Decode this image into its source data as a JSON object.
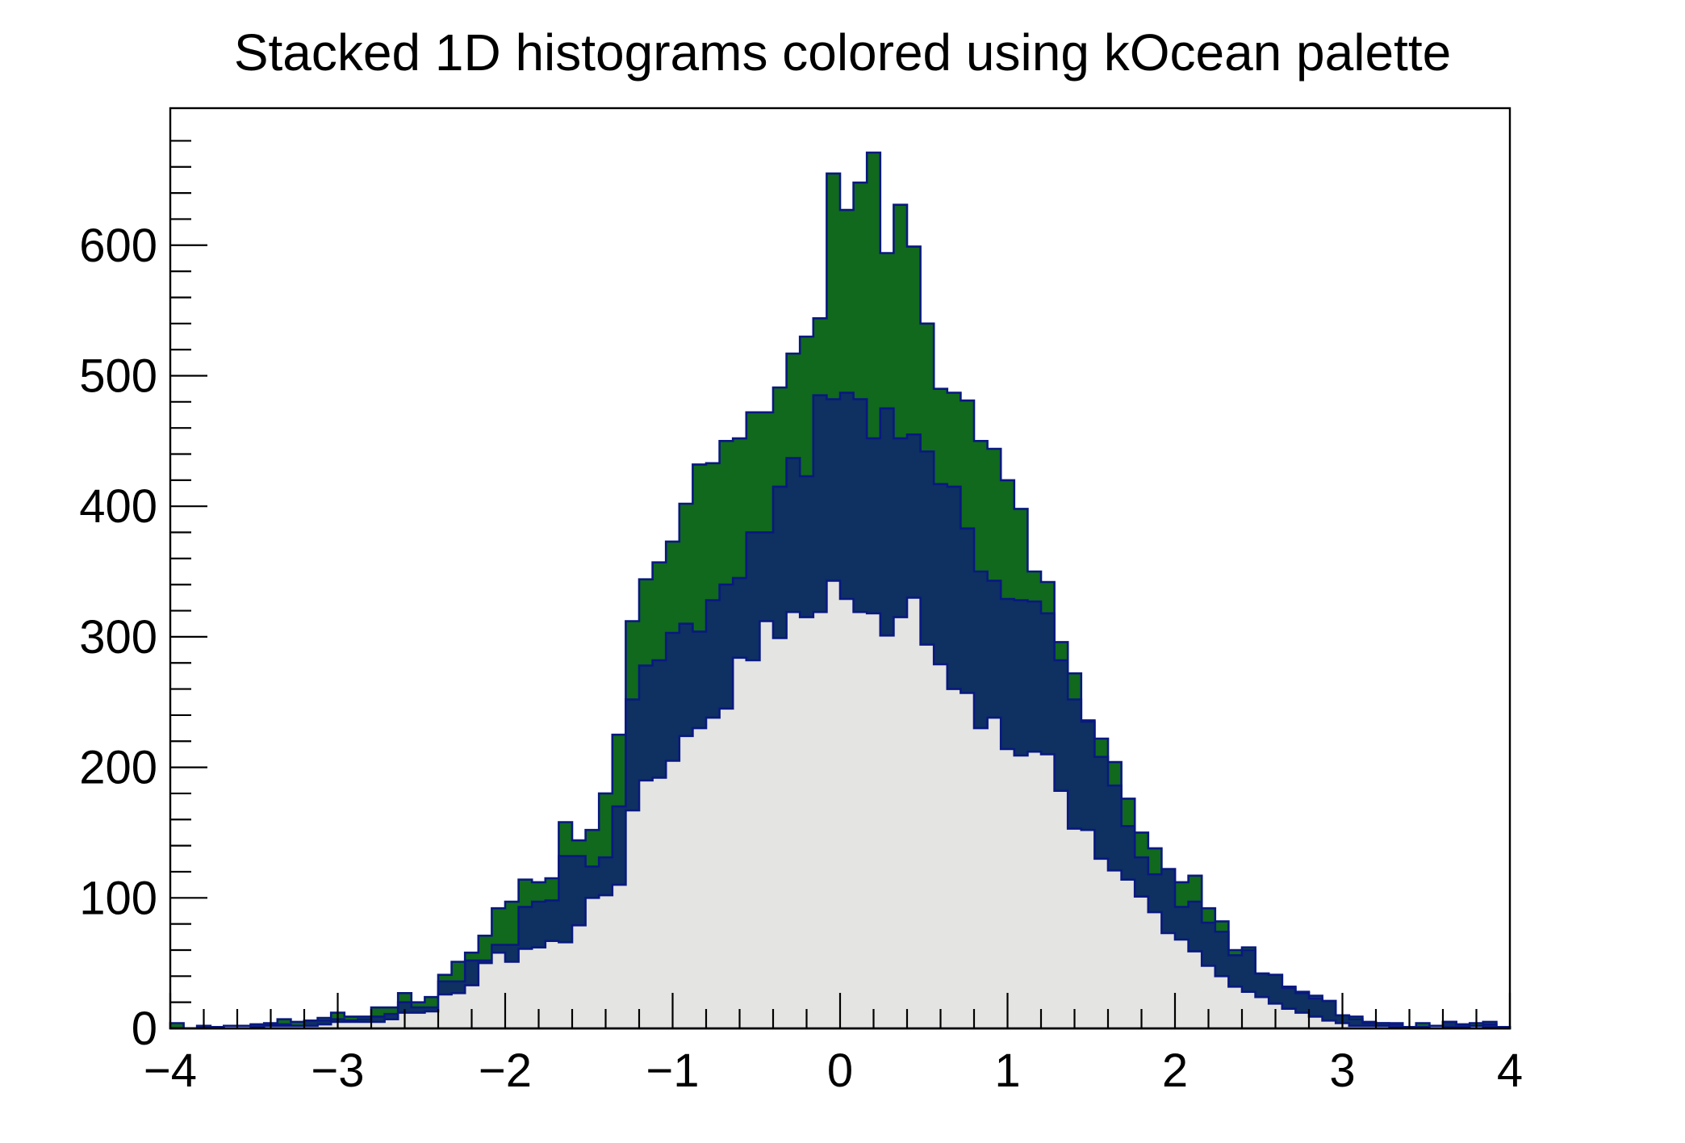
{
  "page": {
    "background": "#ffffff"
  },
  "chart_data": {
    "type": "bar",
    "subtype": "stacked-1d-histograms",
    "title": "Stacked 1D histograms colored using kOcean palette",
    "palette": "kOcean",
    "grid": false,
    "legend_position": "none",
    "xlabel": "",
    "ylabel": "",
    "x_min": -4,
    "x_max": 4,
    "bins": 100,
    "bin_width": 0.08,
    "y_max": 705,
    "x_ticks": [
      -4,
      -3,
      -2,
      -1,
      0,
      1,
      2,
      3,
      4
    ],
    "x_minor_step": 0.2,
    "y_ticks": [
      0,
      100,
      200,
      300,
      400,
      500,
      600
    ],
    "y_minor_step": 20,
    "outline_color": "#09197f",
    "frame_color": "#000000",
    "series": [
      {
        "name": "bottom-light-gray-histogram",
        "color": "#e4e4e2",
        "values": [
          0,
          0,
          0,
          1,
          2,
          2,
          1,
          2,
          2,
          2,
          2,
          3,
          5,
          5,
          5,
          5,
          7,
          12,
          12,
          13,
          26,
          27,
          33,
          50,
          58,
          51,
          61,
          62,
          67,
          66,
          79,
          100,
          102,
          110,
          167,
          190,
          192,
          205,
          224,
          230,
          238,
          245,
          284,
          282,
          312,
          299,
          319,
          315,
          319,
          343,
          329,
          319,
          318,
          301,
          315,
          330,
          294,
          279,
          260,
          257,
          230,
          238,
          214,
          209,
          212,
          210,
          182,
          153,
          152,
          130,
          121,
          114,
          101,
          89,
          73,
          68,
          59,
          48,
          40,
          32,
          28,
          24,
          19,
          15,
          12,
          9,
          6,
          4,
          2,
          2,
          2,
          1,
          1,
          1,
          2,
          1,
          1,
          2,
          1,
          0
        ]
      },
      {
        "name": "middle-navy-histogram",
        "color": "#0e3161",
        "values": [
          0,
          0,
          2,
          0,
          0,
          0,
          2,
          1,
          1,
          0,
          4,
          3,
          2,
          1,
          2,
          4,
          4,
          8,
          4,
          3,
          10,
          9,
          19,
          2,
          6,
          13,
          32,
          35,
          31,
          66,
          53,
          24,
          29,
          60,
          85,
          88,
          90,
          98,
          86,
          74,
          90,
          95,
          61,
          98,
          68,
          116,
          118,
          108,
          166,
          139,
          158,
          163,
          134,
          174,
          137,
          125,
          148,
          138,
          155,
          126,
          120,
          105,
          115,
          119,
          115,
          108,
          100,
          99,
          83,
          78,
          65,
          41,
          30,
          29,
          49,
          25,
          38,
          33,
          34,
          24,
          32,
          18,
          22,
          16,
          15,
          14,
          15,
          6,
          5,
          2,
          2,
          2,
          0,
          0,
          0,
          4,
          2,
          0,
          2,
          1
        ]
      },
      {
        "name": "top-green-histogram",
        "color": "#11691d",
        "values": [
          4,
          0,
          0,
          0,
          0,
          0,
          0,
          1,
          4,
          3,
          0,
          2,
          5,
          3,
          2,
          7,
          5,
          7,
          4,
          8,
          5,
          15,
          6,
          19,
          28,
          33,
          21,
          15,
          17,
          26,
          12,
          28,
          49,
          55,
          60,
          66,
          75,
          70,
          92,
          128,
          105,
          110,
          107,
          92,
          92,
          76,
          80,
          107,
          59,
          173,
          140,
          166,
          219,
          119,
          179,
          144,
          98,
          73,
          72,
          98,
          100,
          101,
          91,
          70,
          23,
          24,
          14,
          20,
          1,
          14,
          18,
          21,
          19,
          20,
          0,
          19,
          20,
          11,
          8,
          4,
          2,
          0,
          0,
          1,
          1,
          2,
          0,
          0,
          2,
          1,
          0,
          1,
          0,
          3,
          0,
          0,
          0,
          2,
          2,
          0
        ]
      }
    ]
  }
}
